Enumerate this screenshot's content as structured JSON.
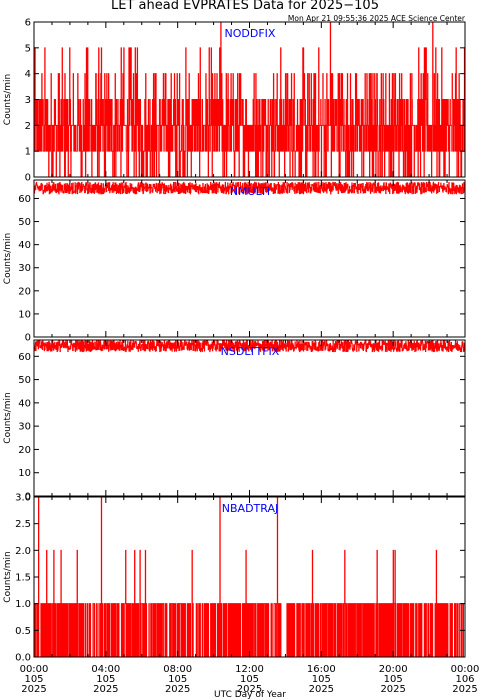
{
  "title": "LET ahead EVPRATES Data for 2025−105",
  "timestamp": "Mon Apr 21 09:55:36 2025 ACE Science Center",
  "xlabel": "UTC Day of Year",
  "colors": {
    "trace": "#ff0000",
    "panel_label": "#0000ff",
    "axes": "#000000"
  },
  "x_ticks": [
    {
      "time": "00:00",
      "doy": "105",
      "year": "2025"
    },
    {
      "time": "04:00",
      "doy": "105",
      "year": "2025"
    },
    {
      "time": "08:00",
      "doy": "105",
      "year": "2025"
    },
    {
      "time": "12:00",
      "doy": "105",
      "year": "2025"
    },
    {
      "time": "16:00",
      "doy": "105",
      "year": "2025"
    },
    {
      "time": "20:00",
      "doy": "105",
      "year": "2025"
    },
    {
      "time": "00:00",
      "doy": "106",
      "year": "2025"
    }
  ],
  "chart_data": [
    {
      "type": "line",
      "label": "NODDFIX",
      "ylabel": "Counts/min",
      "ylim": [
        0,
        6
      ],
      "xlim_hours": [
        0,
        24
      ],
      "yticks": [
        "0",
        "1",
        "2",
        "3",
        "4",
        "5",
        "6"
      ],
      "data_summary": {
        "typical_min": 0,
        "typical_max": 4,
        "spikes_to": 5,
        "max": 6
      },
      "series": [
        {
          "spike_times_hours": [
            10.4,
            16.5,
            22.2
          ],
          "spike_value": 6
        }
      ]
    },
    {
      "type": "line",
      "label": "NMULTI",
      "ylabel": "Counts/min",
      "ylim": [
        0,
        68
      ],
      "xlim_hours": [
        0,
        24
      ],
      "yticks": [
        "0",
        "10",
        "20",
        "30",
        "40",
        "50",
        "60"
      ],
      "data_summary": {
        "typical_min": 62,
        "typical_max": 67,
        "mean": 64.5
      }
    },
    {
      "type": "line",
      "label": "NSDLTTFIX",
      "ylabel": "Counts/min",
      "ylim": [
        0,
        67
      ],
      "xlim_hours": [
        0,
        24
      ],
      "yticks": [
        "0",
        "10",
        "20",
        "30",
        "40",
        "50",
        "60"
      ],
      "data_summary": {
        "typical_min": 62,
        "typical_max": 67,
        "mean": 64.5
      }
    },
    {
      "type": "line",
      "label": "NBADTRAJ",
      "ylabel": "Counts/min",
      "ylim": [
        0,
        3
      ],
      "xlim_hours": [
        0,
        24
      ],
      "yticks": [
        "0.0",
        "0.5",
        "1.0",
        "1.5",
        "2.0",
        "2.5",
        "3.0"
      ],
      "data_summary": {
        "typical_min": 0,
        "typical_max": 1
      },
      "series": [
        {
          "spike_times_hours": [
            0.25,
            3.75,
            10.35,
            13.55
          ],
          "spike_value": 3
        },
        {
          "spike_times_hours": [
            0.7,
            1.1,
            1.5,
            2.4,
            5.1,
            5.6,
            5.9,
            6.2,
            8.8,
            11.8,
            15.5,
            17.3,
            19.1,
            20.0,
            20.1,
            22.4
          ],
          "spike_value": 2
        }
      ]
    }
  ]
}
